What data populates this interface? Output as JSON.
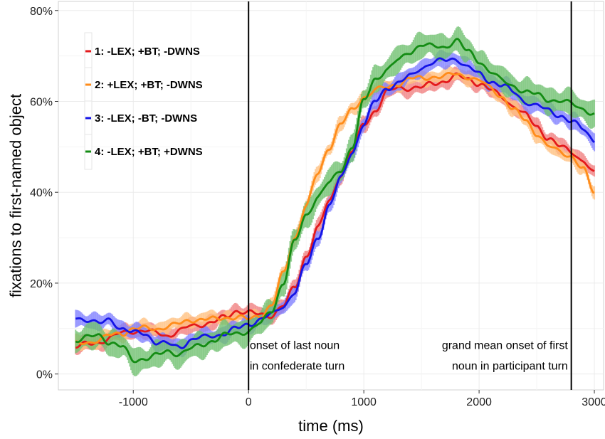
{
  "chart_data": {
    "type": "line",
    "title": "",
    "xlabel": "time (ms)",
    "ylabel": "fixations to first-named object",
    "xlim": [
      -1650,
      3080
    ],
    "ylim": [
      -0.035,
      0.82
    ],
    "x_ticks": [
      -1000,
      0,
      1000,
      2000,
      3000
    ],
    "x_tick_labels": [
      "-1000",
      "0",
      "1000",
      "2000",
      "3000"
    ],
    "y_ticks": [
      0,
      0.2,
      0.4,
      0.6,
      0.8
    ],
    "y_tick_labels": [
      "0%",
      "20%",
      "40%",
      "60%",
      "80%"
    ],
    "grid": true,
    "legend_position": "top-left",
    "vlines": [
      {
        "x": 0,
        "color": "#000000"
      },
      {
        "x": 2800,
        "color": "#000000"
      }
    ],
    "annotations": [
      {
        "lines": [
          "onset of last noun",
          "in confederate turn"
        ],
        "x": 10,
        "y": 0.055,
        "align": "left"
      },
      {
        "lines": [
          "grand mean onset of first",
          "noun in participant turn"
        ],
        "x": 2770,
        "y": 0.055,
        "align": "right"
      }
    ],
    "series": [
      {
        "name": "1: -LEX; +BT; -DWNS",
        "color": "#e41a1c",
        "band_color": "#f08080",
        "x": [
          -1500,
          -1400,
          -1300,
          -1200,
          -1100,
          -1000,
          -900,
          -800,
          -700,
          -600,
          -500,
          -400,
          -300,
          -200,
          -100,
          0,
          100,
          200,
          300,
          400,
          500,
          600,
          700,
          800,
          900,
          1000,
          1100,
          1200,
          1300,
          1400,
          1500,
          1600,
          1700,
          1800,
          1900,
          2000,
          2100,
          2200,
          2300,
          2400,
          2500,
          2600,
          2700,
          2800,
          2900,
          3000
        ],
        "y": [
          0.06,
          0.065,
          0.07,
          0.08,
          0.09,
          0.095,
          0.095,
          0.09,
          0.085,
          0.095,
          0.105,
          0.11,
          0.115,
          0.125,
          0.14,
          0.135,
          0.13,
          0.13,
          0.15,
          0.19,
          0.26,
          0.32,
          0.38,
          0.44,
          0.49,
          0.55,
          0.58,
          0.62,
          0.63,
          0.63,
          0.63,
          0.64,
          0.645,
          0.655,
          0.65,
          0.64,
          0.625,
          0.61,
          0.59,
          0.57,
          0.545,
          0.52,
          0.5,
          0.49,
          0.47,
          0.44
        ],
        "err": 0.015
      },
      {
        "name": "2: +LEX; +BT; -DWNS",
        "color": "#ff8c1a",
        "band_color": "#ffc080",
        "x": [
          -1500,
          -1400,
          -1300,
          -1200,
          -1100,
          -1000,
          -900,
          -800,
          -700,
          -600,
          -500,
          -400,
          -300,
          -200,
          -100,
          0,
          100,
          200,
          300,
          400,
          500,
          600,
          700,
          800,
          900,
          1000,
          1100,
          1200,
          1300,
          1400,
          1500,
          1600,
          1700,
          1800,
          1900,
          2000,
          2100,
          2200,
          2300,
          2400,
          2500,
          2600,
          2700,
          2800,
          2900,
          3000
        ],
        "y": [
          0.065,
          0.07,
          0.075,
          0.085,
          0.09,
          0.1,
          0.1,
          0.1,
          0.105,
          0.11,
          0.12,
          0.12,
          0.12,
          0.125,
          0.125,
          0.12,
          0.13,
          0.15,
          0.22,
          0.3,
          0.37,
          0.44,
          0.5,
          0.55,
          0.58,
          0.61,
          0.625,
          0.63,
          0.64,
          0.65,
          0.65,
          0.655,
          0.655,
          0.66,
          0.655,
          0.645,
          0.63,
          0.61,
          0.58,
          0.56,
          0.53,
          0.5,
          0.49,
          0.48,
          0.45,
          0.4
        ],
        "err": 0.014
      },
      {
        "name": "3: -LEX; -BT; -DWNS",
        "color": "#1414e6",
        "band_color": "#8080ff",
        "x": [
          -1500,
          -1400,
          -1300,
          -1200,
          -1100,
          -1000,
          -900,
          -800,
          -700,
          -600,
          -500,
          -400,
          -300,
          -200,
          -100,
          0,
          100,
          200,
          300,
          400,
          500,
          600,
          700,
          800,
          900,
          1000,
          1100,
          1200,
          1300,
          1400,
          1500,
          1600,
          1700,
          1800,
          1900,
          2000,
          2100,
          2200,
          2300,
          2400,
          2500,
          2600,
          2700,
          2800,
          2900,
          3000
        ],
        "y": [
          0.125,
          0.12,
          0.11,
          0.12,
          0.1,
          0.09,
          0.09,
          0.07,
          0.065,
          0.06,
          0.075,
          0.08,
          0.085,
          0.09,
          0.1,
          0.11,
          0.12,
          0.13,
          0.15,
          0.18,
          0.24,
          0.3,
          0.37,
          0.43,
          0.49,
          0.55,
          0.6,
          0.63,
          0.64,
          0.655,
          0.675,
          0.685,
          0.69,
          0.695,
          0.675,
          0.66,
          0.645,
          0.635,
          0.62,
          0.6,
          0.59,
          0.58,
          0.57,
          0.555,
          0.54,
          0.515
        ],
        "err": 0.016
      },
      {
        "name": "4: -LEX; +BT; +DWNS",
        "color": "#148c14",
        "band_color": "#70c070",
        "x": [
          -1500,
          -1400,
          -1300,
          -1200,
          -1100,
          -1000,
          -900,
          -800,
          -700,
          -600,
          -500,
          -400,
          -300,
          -200,
          -100,
          0,
          100,
          200,
          300,
          400,
          500,
          600,
          700,
          800,
          900,
          1000,
          1100,
          1200,
          1300,
          1400,
          1500,
          1600,
          1700,
          1800,
          1900,
          2000,
          2100,
          2200,
          2300,
          2400,
          2500,
          2600,
          2700,
          2800,
          2900,
          3000
        ],
        "y": [
          0.075,
          0.08,
          0.085,
          0.07,
          0.06,
          0.03,
          0.035,
          0.04,
          0.05,
          0.045,
          0.055,
          0.065,
          0.075,
          0.085,
          0.09,
          0.095,
          0.11,
          0.14,
          0.2,
          0.29,
          0.35,
          0.39,
          0.42,
          0.45,
          0.5,
          0.6,
          0.65,
          0.67,
          0.69,
          0.71,
          0.725,
          0.72,
          0.72,
          0.735,
          0.71,
          0.69,
          0.665,
          0.645,
          0.635,
          0.62,
          0.615,
          0.605,
          0.6,
          0.595,
          0.585,
          0.57
        ],
        "err": 0.025
      }
    ]
  }
}
